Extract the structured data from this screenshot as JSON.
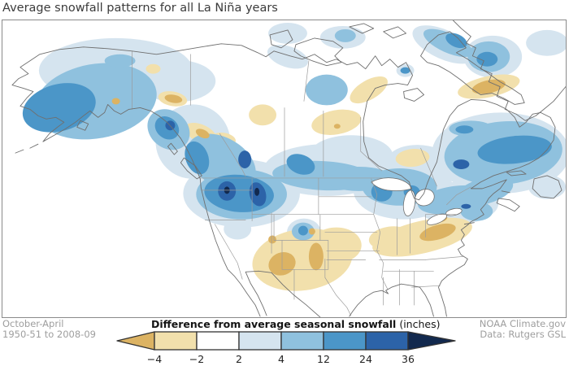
{
  "title": "Average snowfall patterns for all La Niña years",
  "footer": {
    "period_line1": "October-April",
    "period_line2": "1950-51 to 2008-09",
    "source_line1": "NOAA Climate.gov",
    "source_line2": "Data: Rutgers GSL"
  },
  "legend": {
    "title_bold": "Difference from average seasonal snowfall",
    "title_units": "(inches)",
    "tick_labels": [
      "−4",
      "−2",
      "2",
      "4",
      "12",
      "24",
      "36"
    ],
    "segment_colors": [
      "#f2e0ac",
      "#ffffff",
      "#d5e4ef",
      "#8fc1de",
      "#4b96c8",
      "#2c63a8"
    ],
    "arrow_left_color": "#dcb363",
    "arrow_right_color": "#12294e",
    "outline_color": "#333333"
  },
  "map": {
    "region": "North America",
    "palette": {
      "pos1": "#d5e4ef",
      "pos2": "#8fc1de",
      "pos3": "#4b96c8",
      "pos4": "#2c63a8",
      "pos5": "#12294e",
      "neg1": "#f2e0ac",
      "neg2": "#dcb363",
      "coast": "#6f6f6f",
      "stborder": "#9c9c9c"
    },
    "anomaly_meaning": {
      "blue_shades": "more snowfall than average (2 to 36+ inches)",
      "tan_shades": "less snowfall than average (−2 to −4 and below inches)"
    }
  }
}
